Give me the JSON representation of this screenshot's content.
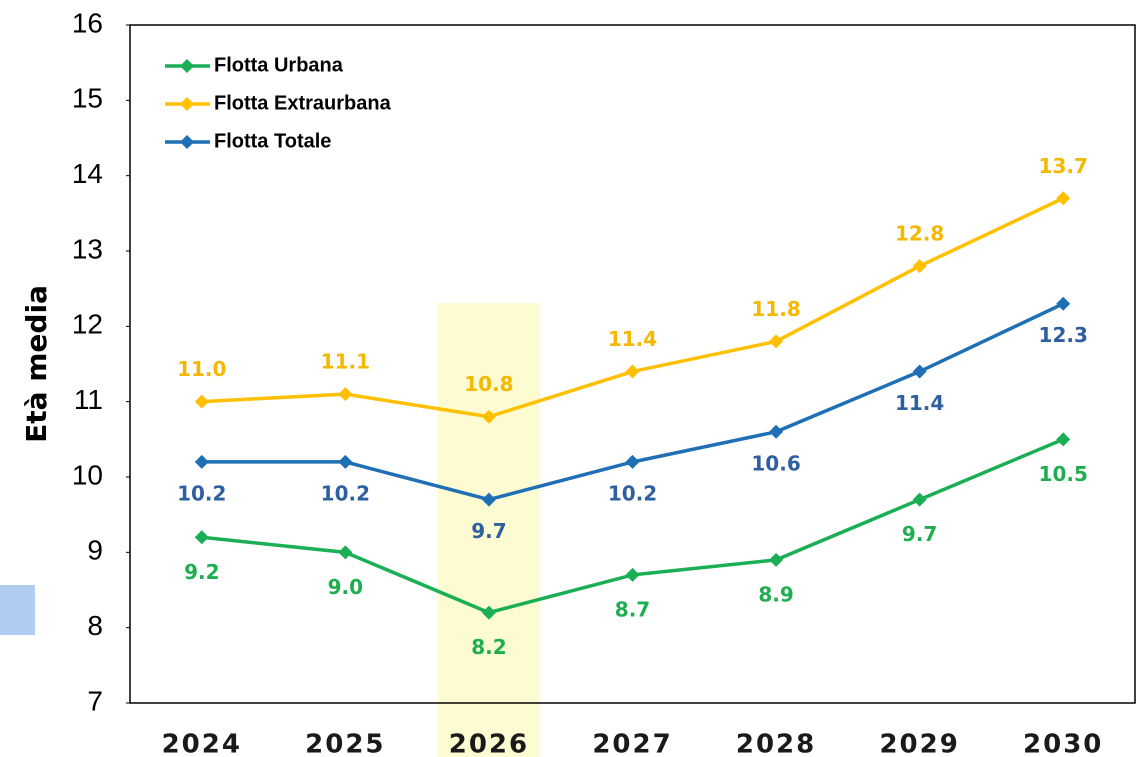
{
  "chart_data": {
    "type": "line",
    "categories": [
      "2024",
      "2025",
      "2026",
      "2027",
      "2028",
      "2029",
      "2030"
    ],
    "y_label": "Età media",
    "series": [
      {
        "name": "Flotta Urbana",
        "color": "#1aaf54",
        "label_color": "#1fae4f",
        "label_pos": "below",
        "values": [
          9.2,
          9.0,
          8.2,
          8.7,
          8.9,
          9.7,
          10.5
        ],
        "value_labels": [
          "9.2",
          "9.0",
          "8.2",
          "8.7",
          "8.9",
          "9.7",
          "10.5"
        ]
      },
      {
        "name": "Flotta Extraurbana",
        "color": "#ffc000",
        "label_color": "#f5b800",
        "label_pos": "above",
        "values": [
          11.0,
          11.1,
          10.8,
          11.4,
          11.8,
          12.8,
          13.7
        ],
        "value_labels": [
          "11.0",
          "11.1",
          "10.8",
          "11.4",
          "11.8",
          "12.8",
          "13.7"
        ]
      },
      {
        "name": "Flotta Totale",
        "color": "#1f6fb5",
        "label_color": "#2e5f9e",
        "label_pos": "below",
        "values": [
          10.2,
          10.2,
          9.7,
          10.2,
          10.6,
          11.4,
          12.3
        ],
        "value_labels": [
          "10.2",
          "10.2",
          "9.7",
          "10.2",
          "10.6",
          "11.4",
          "12.3"
        ]
      }
    ],
    "ylim": [
      7,
      16
    ],
    "yticks": [
      7,
      8,
      9,
      10,
      11,
      12,
      13,
      14,
      15,
      16
    ],
    "legend": "upper left",
    "highlight_category": "2026"
  }
}
